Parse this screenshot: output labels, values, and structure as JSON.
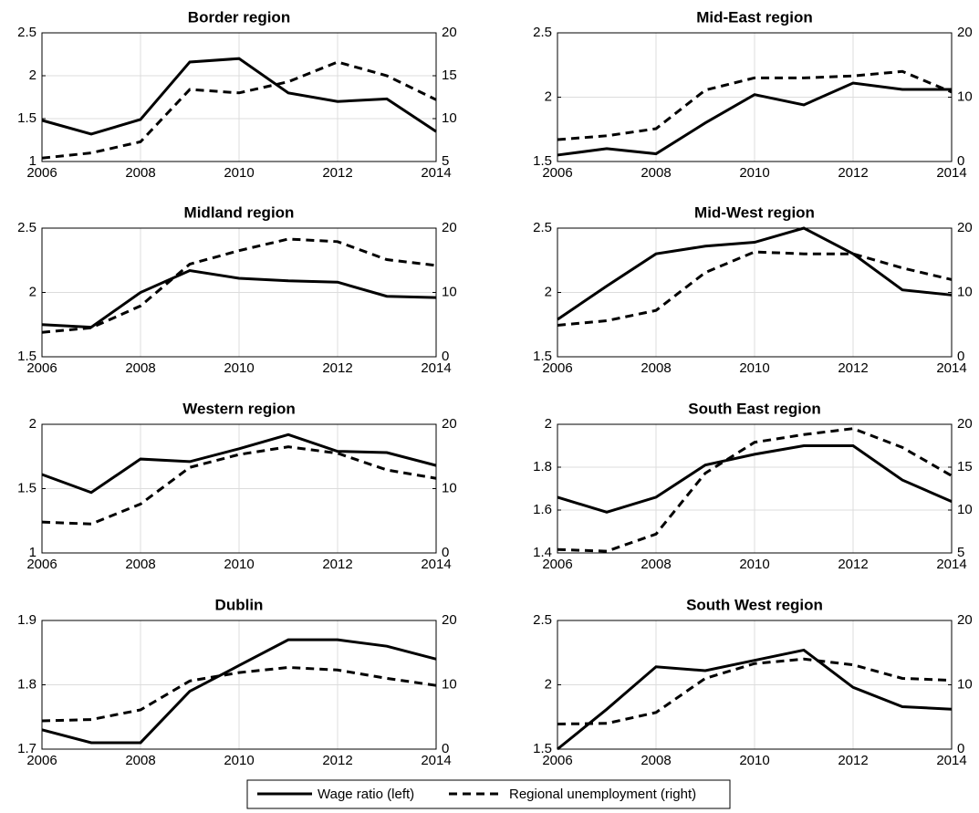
{
  "chart_data": [
    {
      "type": "line",
      "title": "Border region",
      "x": [
        2006,
        2007,
        2008,
        2009,
        2010,
        2011,
        2012,
        2013,
        2014
      ],
      "xlim": [
        2006,
        2014
      ],
      "xticks": [
        2006,
        2008,
        2010,
        2012,
        2014
      ],
      "ylim": [
        1,
        2.5
      ],
      "yticks": [
        1,
        1.5,
        2,
        2.5
      ],
      "y2lim": [
        5,
        20
      ],
      "y2ticks": [
        5,
        10,
        15,
        20
      ],
      "grid": true,
      "series": [
        {
          "color": "#000000",
          "line_style": "solid",
          "values": [
            1.48,
            1.32,
            1.49,
            2.16,
            2.2,
            1.8,
            1.7,
            1.73,
            1.35
          ]
        },
        {
          "color": "#000000",
          "line_style": "dashed",
          "axis": "y2",
          "values": [
            5.4,
            6.0,
            7.3,
            13.4,
            13.0,
            14.3,
            16.6,
            15.0,
            12.2
          ]
        }
      ]
    },
    {
      "type": "line",
      "title": "Mid-East region",
      "x": [
        2006,
        2007,
        2008,
        2009,
        2010,
        2011,
        2012,
        2013,
        2014
      ],
      "xlim": [
        2006,
        2014
      ],
      "xticks": [
        2006,
        2008,
        2010,
        2012,
        2014
      ],
      "ylim": [
        1.5,
        2.5
      ],
      "yticks": [
        1.5,
        2,
        2.5
      ],
      "y2lim": [
        0,
        20
      ],
      "y2ticks": [
        0,
        10,
        20
      ],
      "grid": true,
      "series": [
        {
          "color": "#000000",
          "line_style": "solid",
          "values": [
            1.55,
            1.6,
            1.56,
            1.8,
            2.02,
            1.94,
            2.11,
            2.06,
            2.06
          ]
        },
        {
          "color": "#000000",
          "line_style": "dashed",
          "axis": "y2",
          "values": [
            3.4,
            4.0,
            5.1,
            11.1,
            13.0,
            13.0,
            13.3,
            14.0,
            10.8
          ]
        }
      ]
    },
    {
      "type": "line",
      "title": "Midland region",
      "x": [
        2006,
        2007,
        2008,
        2009,
        2010,
        2011,
        2012,
        2013,
        2014
      ],
      "xlim": [
        2006,
        2014
      ],
      "xticks": [
        2006,
        2008,
        2010,
        2012,
        2014
      ],
      "ylim": [
        1.5,
        2.5
      ],
      "yticks": [
        1.5,
        2,
        2.5
      ],
      "y2lim": [
        0,
        20
      ],
      "y2ticks": [
        0,
        10,
        20
      ],
      "grid": true,
      "series": [
        {
          "color": "#000000",
          "line_style": "solid",
          "values": [
            1.75,
            1.73,
            2.0,
            2.17,
            2.11,
            2.09,
            2.08,
            1.97,
            1.96
          ]
        },
        {
          "color": "#000000",
          "line_style": "dashed",
          "axis": "y2",
          "values": [
            3.8,
            4.5,
            7.9,
            14.4,
            16.5,
            18.3,
            17.9,
            15.1,
            14.2
          ]
        }
      ]
    },
    {
      "type": "line",
      "title": "Mid-West region",
      "x": [
        2006,
        2007,
        2008,
        2009,
        2010,
        2011,
        2012,
        2013,
        2014
      ],
      "xlim": [
        2006,
        2014
      ],
      "xticks": [
        2006,
        2008,
        2010,
        2012,
        2014
      ],
      "ylim": [
        1.5,
        2.5
      ],
      "yticks": [
        1.5,
        2,
        2.5
      ],
      "y2lim": [
        0,
        20
      ],
      "y2ticks": [
        0,
        10,
        20
      ],
      "grid": true,
      "series": [
        {
          "color": "#000000",
          "line_style": "solid",
          "values": [
            1.79,
            2.05,
            2.3,
            2.36,
            2.39,
            2.5,
            2.3,
            2.02,
            1.98
          ]
        },
        {
          "color": "#000000",
          "line_style": "dashed",
          "axis": "y2",
          "values": [
            4.9,
            5.6,
            7.2,
            13.1,
            16.3,
            16.0,
            16.0,
            13.8,
            12.0
          ]
        }
      ]
    },
    {
      "type": "line",
      "title": "Western region",
      "x": [
        2006,
        2007,
        2008,
        2009,
        2010,
        2011,
        2012,
        2013,
        2014
      ],
      "xlim": [
        2006,
        2014
      ],
      "xticks": [
        2006,
        2008,
        2010,
        2012,
        2014
      ],
      "ylim": [
        1,
        2
      ],
      "yticks": [
        1,
        1.5,
        2
      ],
      "y2lim": [
        0,
        20
      ],
      "y2ticks": [
        0,
        10,
        20
      ],
      "grid": true,
      "series": [
        {
          "color": "#000000",
          "line_style": "solid",
          "values": [
            1.61,
            1.47,
            1.73,
            1.71,
            1.81,
            1.92,
            1.79,
            1.78,
            1.68
          ]
        },
        {
          "color": "#000000",
          "line_style": "dashed",
          "axis": "y2",
          "values": [
            4.8,
            4.5,
            7.6,
            13.3,
            15.3,
            16.5,
            15.5,
            12.9,
            11.6
          ]
        }
      ]
    },
    {
      "type": "line",
      "title": "South East region",
      "x": [
        2006,
        2007,
        2008,
        2009,
        2010,
        2011,
        2012,
        2013,
        2014
      ],
      "xlim": [
        2006,
        2014
      ],
      "xticks": [
        2006,
        2008,
        2010,
        2012,
        2014
      ],
      "ylim": [
        1.4,
        2
      ],
      "yticks": [
        1.4,
        1.6,
        1.8,
        2
      ],
      "y2lim": [
        5,
        20
      ],
      "y2ticks": [
        5,
        10,
        15,
        20
      ],
      "grid": true,
      "series": [
        {
          "color": "#000000",
          "line_style": "solid",
          "values": [
            1.66,
            1.59,
            1.66,
            1.81,
            1.86,
            1.9,
            1.9,
            1.74,
            1.64
          ]
        },
        {
          "color": "#000000",
          "line_style": "dashed",
          "axis": "y2",
          "values": [
            5.4,
            5.2,
            7.2,
            14.3,
            17.9,
            18.8,
            19.5,
            17.3,
            14.0
          ]
        }
      ]
    },
    {
      "type": "line",
      "title": "Dublin",
      "x": [
        2006,
        2007,
        2008,
        2009,
        2010,
        2011,
        2012,
        2013,
        2014
      ],
      "xlim": [
        2006,
        2014
      ],
      "xticks": [
        2006,
        2008,
        2010,
        2012,
        2014
      ],
      "ylim": [
        1.7,
        1.9
      ],
      "yticks": [
        1.7,
        1.8,
        1.9
      ],
      "y2lim": [
        0,
        20
      ],
      "y2ticks": [
        0,
        10,
        20
      ],
      "grid": true,
      "series": [
        {
          "color": "#000000",
          "line_style": "solid",
          "values": [
            1.73,
            1.71,
            1.71,
            1.79,
            1.83,
            1.87,
            1.87,
            1.86,
            1.84
          ]
        },
        {
          "color": "#000000",
          "line_style": "dashed",
          "axis": "y2",
          "values": [
            4.4,
            4.6,
            6.1,
            10.6,
            11.9,
            12.7,
            12.3,
            11.0,
            9.9
          ]
        }
      ]
    },
    {
      "type": "line",
      "title": "South West region",
      "x": [
        2006,
        2007,
        2008,
        2009,
        2010,
        2011,
        2012,
        2013,
        2014
      ],
      "xlim": [
        2006,
        2014
      ],
      "xticks": [
        2006,
        2008,
        2010,
        2012,
        2014
      ],
      "ylim": [
        1.5,
        2.5
      ],
      "yticks": [
        1.5,
        2,
        2.5
      ],
      "y2lim": [
        0,
        20
      ],
      "y2ticks": [
        0,
        10,
        20
      ],
      "grid": true,
      "series": [
        {
          "color": "#000000",
          "line_style": "solid",
          "values": [
            1.5,
            1.81,
            2.14,
            2.11,
            2.19,
            2.27,
            1.98,
            1.83,
            1.81
          ]
        },
        {
          "color": "#000000",
          "line_style": "dashed",
          "axis": "y2",
          "values": [
            3.9,
            4.0,
            5.7,
            11.0,
            13.3,
            14.0,
            13.1,
            11.0,
            10.7
          ]
        }
      ]
    }
  ],
  "legend": {
    "entries": [
      {
        "name": "Wage ratio (left)",
        "line_style": "solid"
      },
      {
        "name": "Regional unemployment (right)",
        "line_style": "dashed"
      }
    ]
  }
}
